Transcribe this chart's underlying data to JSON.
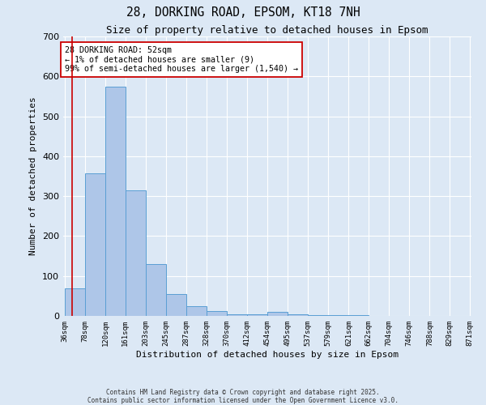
{
  "title": "28, DORKING ROAD, EPSOM, KT18 7NH",
  "subtitle": "Size of property relative to detached houses in Epsom",
  "xlabel": "Distribution of detached houses by size in Epsom",
  "ylabel": "Number of detached properties",
  "bar_edges": [
    36,
    78,
    120,
    161,
    203,
    245,
    287,
    328,
    370,
    412,
    454,
    495,
    537,
    579,
    621,
    662,
    704,
    746,
    788,
    829,
    871
  ],
  "bar_heights": [
    70,
    358,
    575,
    315,
    130,
    55,
    25,
    12,
    5,
    5,
    10,
    5,
    3,
    2,
    2,
    1,
    1,
    1,
    1,
    0
  ],
  "bar_color": "#aec6e8",
  "bar_edgecolor": "#5a9fd4",
  "property_size": 52,
  "vline_color": "#cc0000",
  "annotation_text": "28 DORKING ROAD: 52sqm\n← 1% of detached houses are smaller (9)\n99% of semi-detached houses are larger (1,540) →",
  "annotation_box_edgecolor": "#cc0000",
  "annotation_box_facecolor": "#ffffff",
  "ylim": [
    0,
    700
  ],
  "yticks": [
    0,
    100,
    200,
    300,
    400,
    500,
    600,
    700
  ],
  "bg_color": "#dce8f5",
  "grid_color": "#ffffff",
  "footer_line1": "Contains HM Land Registry data © Crown copyright and database right 2025.",
  "footer_line2": "Contains public sector information licensed under the Open Government Licence v3.0."
}
